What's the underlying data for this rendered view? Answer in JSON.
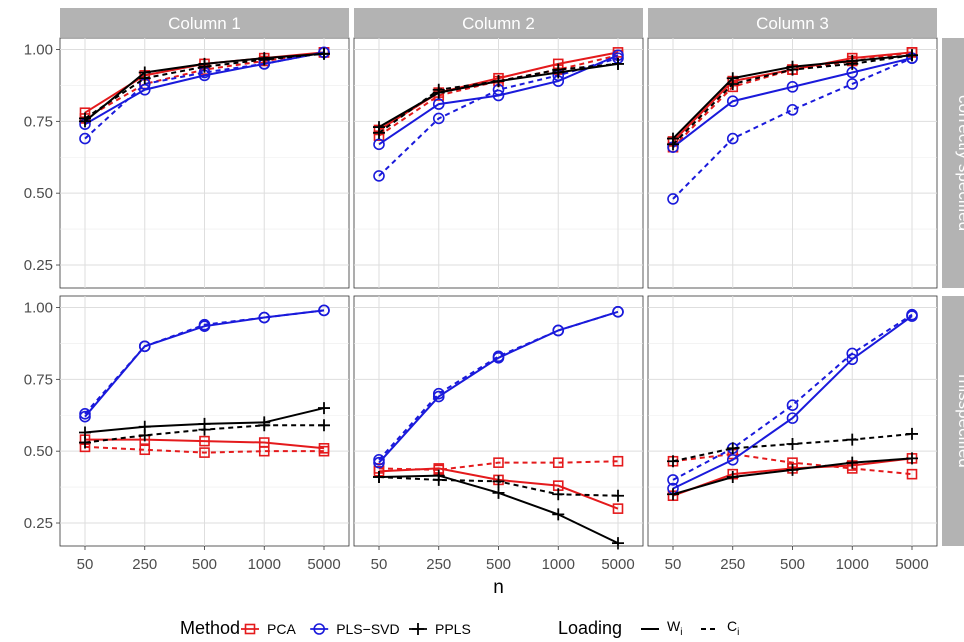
{
  "chart_data": {
    "type": "line",
    "x_label": "n",
    "x_ticks": [
      "50",
      "250",
      "500",
      "1000",
      "5000"
    ],
    "y_ticks": [
      "0.25",
      "0.50",
      "0.75",
      "1.00"
    ],
    "ylim": [
      0.17,
      1.04
    ],
    "grid": true,
    "columns": [
      "Column 1",
      "Column 2",
      "Column 3"
    ],
    "rows": [
      "correctly specified",
      "misspecified"
    ],
    "methods": [
      {
        "name": "PCA",
        "color": "#e41a1c",
        "marker": "square-icon"
      },
      {
        "name": "PLS−SVD",
        "color": "#1a1adb",
        "marker": "circle-icon"
      },
      {
        "name": "PPLS",
        "color": "#000000",
        "marker": "plus-icon"
      }
    ],
    "loadings": [
      {
        "name": "W",
        "sub": "i",
        "dash": "solid"
      },
      {
        "name": "C",
        "sub": "i",
        "dash": "dashed"
      }
    ],
    "legend": {
      "method_title": "Method",
      "loading_title": "Loading",
      "position": "bottom"
    },
    "panels": [
      {
        "row": "correctly specified",
        "column": "Column 1",
        "series": [
          {
            "method": "PCA",
            "loading": "W",
            "values": [
              0.78,
              0.91,
              0.95,
              0.97,
              0.99
            ]
          },
          {
            "method": "PCA",
            "loading": "C",
            "values": [
              0.76,
              0.88,
              0.93,
              0.96,
              0.99
            ]
          },
          {
            "method": "PLS−SVD",
            "loading": "W",
            "values": [
              0.74,
              0.86,
              0.91,
              0.95,
              0.99
            ]
          },
          {
            "method": "PLS−SVD",
            "loading": "C",
            "values": [
              0.69,
              0.88,
              0.92,
              0.95,
              0.99
            ]
          },
          {
            "method": "PPLS",
            "loading": "W",
            "values": [
              0.75,
              0.92,
              0.95,
              0.97,
              0.985
            ]
          },
          {
            "method": "PPLS",
            "loading": "C",
            "values": [
              0.76,
              0.9,
              0.94,
              0.965,
              0.985
            ]
          }
        ]
      },
      {
        "row": "correctly specified",
        "column": "Column 2",
        "series": [
          {
            "method": "PCA",
            "loading": "W",
            "values": [
              0.72,
              0.85,
              0.9,
              0.95,
              0.99
            ]
          },
          {
            "method": "PCA",
            "loading": "C",
            "values": [
              0.7,
              0.84,
              0.89,
              0.93,
              0.98
            ]
          },
          {
            "method": "PLS−SVD",
            "loading": "W",
            "values": [
              0.67,
              0.81,
              0.84,
              0.89,
              0.98
            ]
          },
          {
            "method": "PLS−SVD",
            "loading": "C",
            "values": [
              0.56,
              0.76,
              0.86,
              0.91,
              0.97
            ]
          },
          {
            "method": "PPLS",
            "loading": "W",
            "values": [
              0.73,
              0.85,
              0.89,
              0.92,
              0.95
            ]
          },
          {
            "method": "PPLS",
            "loading": "C",
            "values": [
              0.71,
              0.86,
              0.89,
              0.93,
              0.95
            ]
          }
        ]
      },
      {
        "row": "correctly specified",
        "column": "Column 3",
        "series": [
          {
            "method": "PCA",
            "loading": "W",
            "values": [
              0.68,
              0.89,
              0.93,
              0.97,
              0.99
            ]
          },
          {
            "method": "PCA",
            "loading": "C",
            "values": [
              0.66,
              0.87,
              0.93,
              0.96,
              0.99
            ]
          },
          {
            "method": "PLS−SVD",
            "loading": "W",
            "values": [
              0.66,
              0.82,
              0.87,
              0.92,
              0.97
            ]
          },
          {
            "method": "PLS−SVD",
            "loading": "C",
            "values": [
              0.48,
              0.69,
              0.79,
              0.88,
              0.97
            ]
          },
          {
            "method": "PPLS",
            "loading": "W",
            "values": [
              0.69,
              0.9,
              0.94,
              0.96,
              0.98
            ]
          },
          {
            "method": "PPLS",
            "loading": "C",
            "values": [
              0.67,
              0.88,
              0.93,
              0.95,
              0.98
            ]
          }
        ]
      },
      {
        "row": "misspecified",
        "column": "Column 1",
        "series": [
          {
            "method": "PCA",
            "loading": "W",
            "values": [
              0.54,
              0.54,
              0.535,
              0.53,
              0.51
            ]
          },
          {
            "method": "PCA",
            "loading": "C",
            "values": [
              0.515,
              0.505,
              0.495,
              0.5,
              0.5
            ]
          },
          {
            "method": "PLS−SVD",
            "loading": "W",
            "values": [
              0.62,
              0.865,
              0.935,
              0.965,
              0.99
            ]
          },
          {
            "method": "PLS−SVD",
            "loading": "C",
            "values": [
              0.63,
              0.865,
              0.94,
              0.965,
              0.99
            ]
          },
          {
            "method": "PPLS",
            "loading": "W",
            "values": [
              0.565,
              0.585,
              0.595,
              0.6,
              0.65
            ]
          },
          {
            "method": "PPLS",
            "loading": "C",
            "values": [
              0.53,
              0.555,
              0.575,
              0.59,
              0.59
            ]
          }
        ]
      },
      {
        "row": "misspecified",
        "column": "Column 2",
        "series": [
          {
            "method": "PCA",
            "loading": "W",
            "values": [
              0.43,
              0.44,
              0.4,
              0.38,
              0.3
            ]
          },
          {
            "method": "PCA",
            "loading": "C",
            "values": [
              0.44,
              0.435,
              0.46,
              0.46,
              0.465
            ]
          },
          {
            "method": "PLS−SVD",
            "loading": "W",
            "values": [
              0.46,
              0.69,
              0.825,
              0.92,
              0.985
            ]
          },
          {
            "method": "PLS−SVD",
            "loading": "C",
            "values": [
              0.47,
              0.7,
              0.83,
              0.92,
              0.985
            ]
          },
          {
            "method": "PPLS",
            "loading": "W",
            "values": [
              0.41,
              0.415,
              0.355,
              0.28,
              0.18
            ]
          },
          {
            "method": "PPLS",
            "loading": "C",
            "values": [
              0.41,
              0.4,
              0.395,
              0.35,
              0.345
            ]
          }
        ]
      },
      {
        "row": "misspecified",
        "column": "Column 3",
        "series": [
          {
            "method": "PCA",
            "loading": "W",
            "values": [
              0.345,
              0.42,
              0.44,
              0.45,
              0.475
            ]
          },
          {
            "method": "PCA",
            "loading": "C",
            "values": [
              0.465,
              0.49,
              0.46,
              0.44,
              0.42
            ]
          },
          {
            "method": "PLS−SVD",
            "loading": "W",
            "values": [
              0.37,
              0.47,
              0.615,
              0.82,
              0.97
            ]
          },
          {
            "method": "PLS−SVD",
            "loading": "C",
            "values": [
              0.4,
              0.51,
              0.66,
              0.84,
              0.975
            ]
          },
          {
            "method": "PPLS",
            "loading": "W",
            "values": [
              0.35,
              0.41,
              0.435,
              0.46,
              0.475
            ]
          },
          {
            "method": "PPLS",
            "loading": "C",
            "values": [
              0.465,
              0.51,
              0.525,
              0.54,
              0.56
            ]
          }
        ]
      }
    ]
  }
}
